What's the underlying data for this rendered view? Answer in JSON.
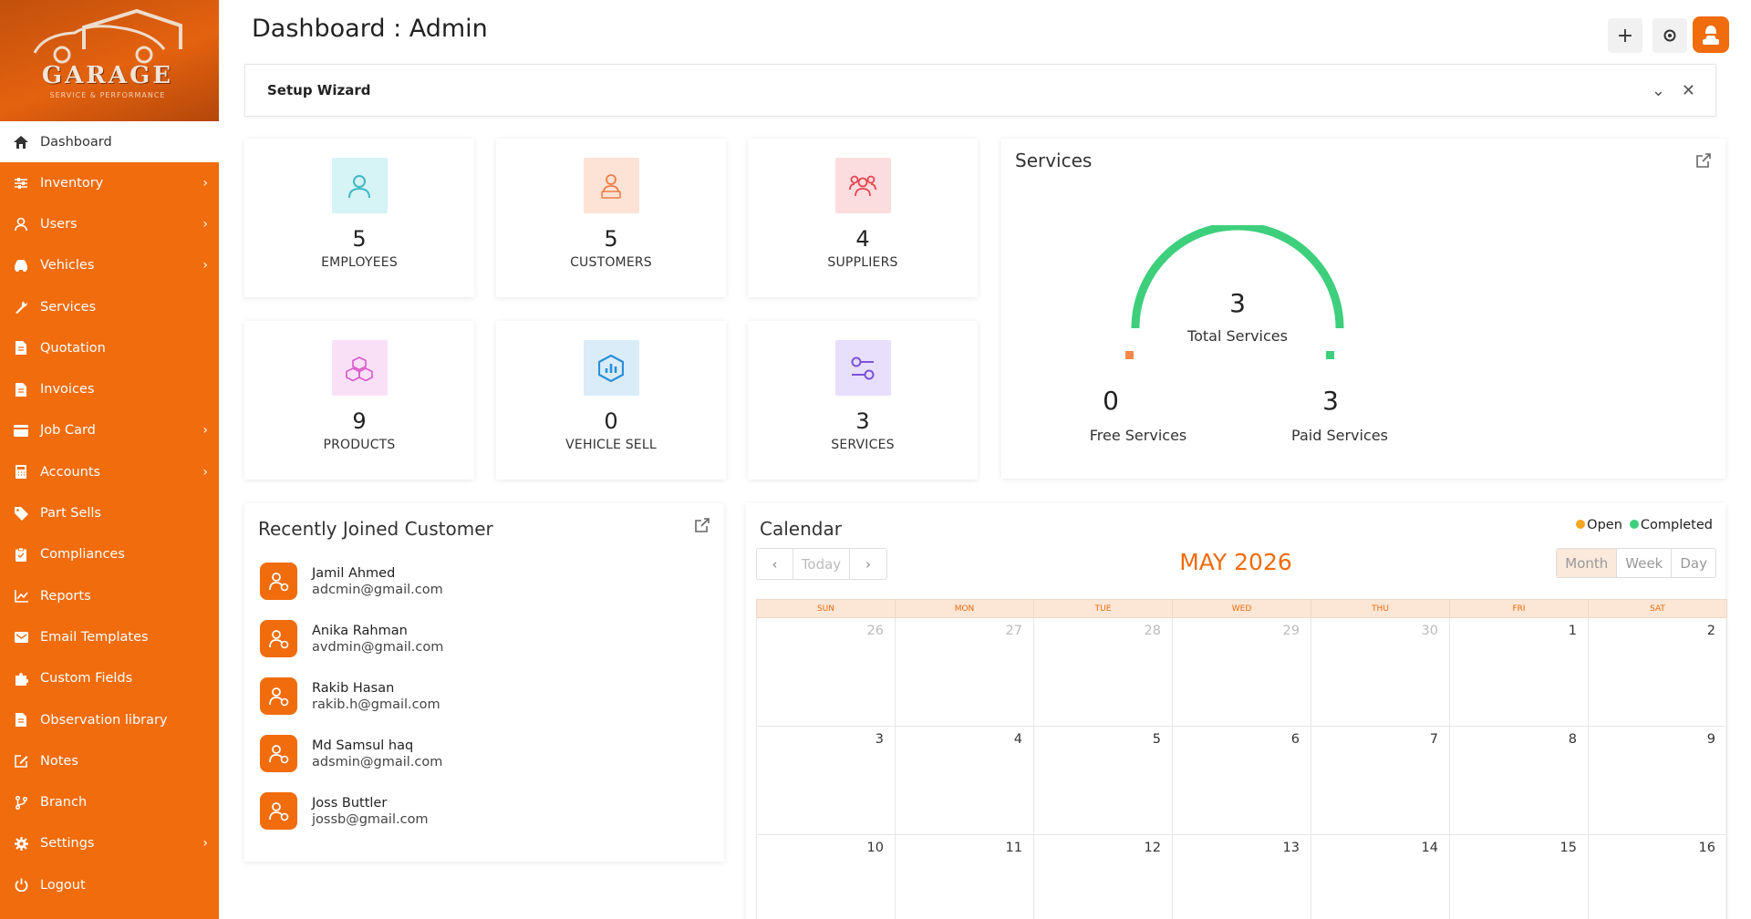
{
  "brand": {
    "name": "GARAGE",
    "tagline": "SERVICE & PERFORMANCE"
  },
  "sidebar": {
    "items": [
      {
        "label": "Dashboard",
        "icon": "home-icon",
        "active": true,
        "submenu": false
      },
      {
        "label": "Inventory",
        "icon": "sliders-icon",
        "submenu": true
      },
      {
        "label": "Users",
        "icon": "user-icon",
        "submenu": true
      },
      {
        "label": "Vehicles",
        "icon": "car-icon",
        "submenu": true
      },
      {
        "label": "Services",
        "icon": "wrench-icon",
        "submenu": false
      },
      {
        "label": "Quotation",
        "icon": "file-icon",
        "submenu": false
      },
      {
        "label": "Invoices",
        "icon": "file-icon",
        "submenu": false
      },
      {
        "label": "Job Card",
        "icon": "card-icon",
        "submenu": true
      },
      {
        "label": "Accounts",
        "icon": "calculator-icon",
        "submenu": true
      },
      {
        "label": "Part Sells",
        "icon": "tag-icon",
        "submenu": false
      },
      {
        "label": "Compliances",
        "icon": "clipboard-icon",
        "submenu": false
      },
      {
        "label": "Reports",
        "icon": "chart-line-icon",
        "submenu": false
      },
      {
        "label": "Email Templates",
        "icon": "envelope-icon",
        "submenu": false
      },
      {
        "label": "Custom Fields",
        "icon": "puzzle-icon",
        "submenu": false
      },
      {
        "label": "Observation library",
        "icon": "file-icon",
        "submenu": false
      },
      {
        "label": "Notes",
        "icon": "edit-icon",
        "submenu": false
      },
      {
        "label": "Branch",
        "icon": "branch-icon",
        "submenu": false
      },
      {
        "label": "Settings",
        "icon": "gear-icon",
        "submenu": true
      },
      {
        "label": "Logout",
        "icon": "power-icon",
        "submenu": false
      }
    ]
  },
  "header": {
    "title": "Dashboard : Admin"
  },
  "wizard": {
    "title": "Setup Wizard"
  },
  "stats": [
    {
      "value": "5",
      "label": "EMPLOYEES",
      "icon": "user-icon",
      "bg": "#d6f3f6",
      "fg": "#3fb9c5"
    },
    {
      "value": "5",
      "label": "CUSTOMERS",
      "icon": "customer-icon",
      "bg": "#fde3d6",
      "fg": "#f07c45"
    },
    {
      "value": "4",
      "label": "SUPPLIERS",
      "icon": "group-icon",
      "bg": "#fbdde0",
      "fg": "#e8454f"
    },
    {
      "value": "9",
      "label": "PRODUCTS",
      "icon": "boxes-icon",
      "bg": "#fae0f7",
      "fg": "#d957c9"
    },
    {
      "value": "0",
      "label": "VEHICLE SELL",
      "icon": "hexagon-chart-icon",
      "bg": "#d9ecf8",
      "fg": "#2a8fd8"
    },
    {
      "value": "3",
      "label": "SERVICES",
      "icon": "toggle-icon",
      "bg": "#e7dffb",
      "fg": "#7d53d8"
    }
  ],
  "services": {
    "title": "Services",
    "total": "3",
    "total_label": "Total Services",
    "free": "0",
    "free_label": "Free Services",
    "paid": "3",
    "paid_label": "Paid Services",
    "free_color": "#f5894a",
    "paid_color": "#3ecf7d"
  },
  "customers": {
    "title": "Recently Joined Customer",
    "list": [
      {
        "name": "Jamil Ahmed",
        "email": "adcmin@gmail.com"
      },
      {
        "name": "Anika Rahman",
        "email": "avdmin@gmail.com"
      },
      {
        "name": "Rakib Hasan",
        "email": "rakib.h@gmail.com"
      },
      {
        "name": "Md Samsul haq",
        "email": "adsmin@gmail.com"
      },
      {
        "name": "Joss Buttler",
        "email": "jossb@gmail.com"
      }
    ]
  },
  "calendar": {
    "title": "Calendar",
    "legend_open": "Open",
    "legend_completed": "Completed",
    "open_color": "#f5a623",
    "completed_color": "#3ecf7d",
    "today": "Today",
    "month_title": "MAY 2026",
    "views": [
      "Month",
      "Week",
      "Day"
    ],
    "days": [
      "SUN",
      "MON",
      "TUE",
      "WED",
      "THU",
      "FRI",
      "SAT"
    ],
    "weeks": [
      [
        "26",
        "27",
        "28",
        "29",
        "30",
        "1",
        "2"
      ],
      [
        "3",
        "4",
        "5",
        "6",
        "7",
        "8",
        "9"
      ],
      [
        "10",
        "11",
        "12",
        "13",
        "14",
        "15",
        "16"
      ]
    ]
  }
}
